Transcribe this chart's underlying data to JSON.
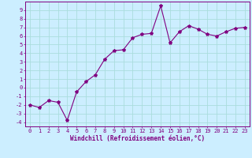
{
  "x": [
    0,
    1,
    2,
    3,
    4,
    5,
    6,
    7,
    8,
    9,
    10,
    11,
    12,
    13,
    14,
    15,
    16,
    17,
    18,
    19,
    20,
    21,
    22,
    23
  ],
  "y": [
    -2.0,
    -2.3,
    -1.5,
    -1.7,
    -3.8,
    -0.5,
    0.7,
    1.5,
    3.3,
    4.3,
    4.4,
    5.8,
    6.2,
    6.3,
    9.5,
    5.2,
    6.5,
    7.2,
    6.8,
    6.2,
    6.0,
    6.5,
    6.9,
    7.0
  ],
  "line_color": "#800080",
  "marker": "*",
  "marker_size": 3,
  "bg_color": "#cceeff",
  "grid_color": "#aadddd",
  "axis_color": "#800080",
  "xlabel": "Windchill (Refroidissement éolien,°C)",
  "xlabel_fontsize": 5.5,
  "ylabel_ticks": [
    -4,
    -3,
    -2,
    -1,
    0,
    1,
    2,
    3,
    4,
    5,
    6,
    7,
    8,
    9
  ],
  "xticks": [
    0,
    1,
    2,
    3,
    4,
    5,
    6,
    7,
    8,
    9,
    10,
    11,
    12,
    13,
    14,
    15,
    16,
    17,
    18,
    19,
    20,
    21,
    22,
    23
  ],
  "ylim": [
    -4.5,
    10.0
  ],
  "xlim": [
    -0.5,
    23.5
  ],
  "tick_fontsize": 5.0
}
